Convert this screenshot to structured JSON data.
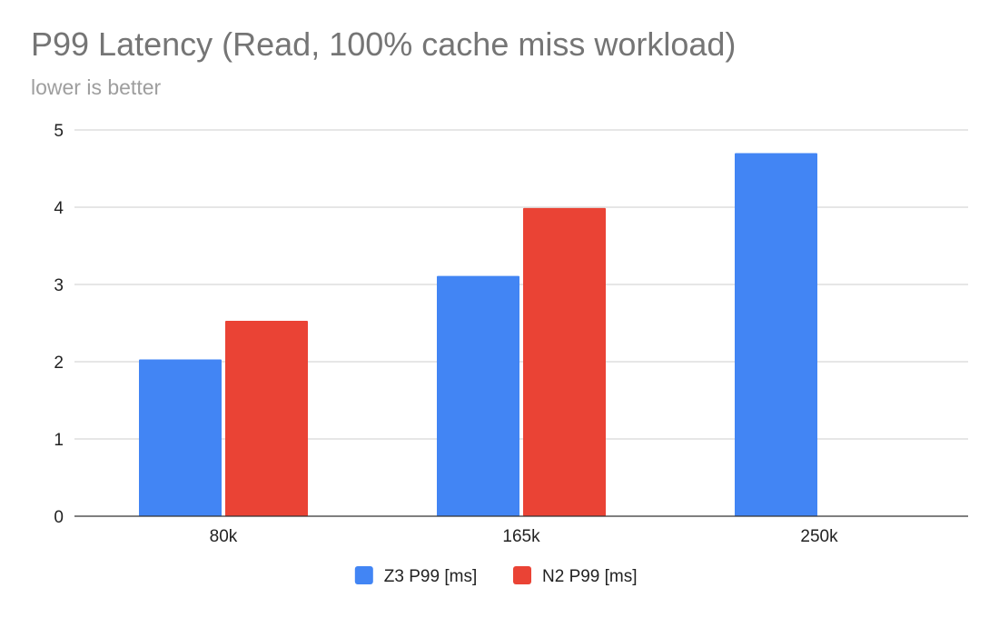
{
  "chart_data": {
    "type": "bar",
    "title": "P99 Latency (Read, 100% cache miss workload)",
    "subtitle": "lower is better",
    "categories": [
      "80k",
      "165k",
      "250k"
    ],
    "series": [
      {
        "name": "Z3 P99 [ms]",
        "color": "#4285f4",
        "values": [
          2.03,
          3.11,
          4.7
        ]
      },
      {
        "name": "N2 P99 [ms]",
        "color": "#ea4335",
        "values": [
          2.53,
          3.99,
          null
        ]
      }
    ],
    "ylim": [
      0,
      5
    ],
    "yticks": [
      0,
      1,
      2,
      3,
      4,
      5
    ],
    "grid": true,
    "legend_position": "bottom"
  }
}
